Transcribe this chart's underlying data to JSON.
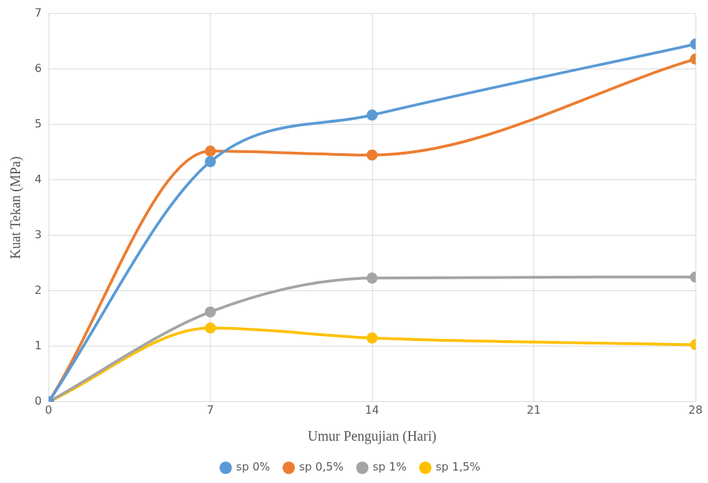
{
  "chart_data": {
    "type": "line",
    "xlabel": "Umur Pengujian (Hari)",
    "ylabel": "Kuat Tekan (MPa)",
    "x": [
      0,
      7,
      14,
      28
    ],
    "series": [
      {
        "name": "sp 0%",
        "color": "#5b9bd5",
        "values": [
          0,
          4.33,
          5.17,
          6.45
        ]
      },
      {
        "name": "sp 0,5%",
        "color": "#ed7d31",
        "values": [
          0,
          4.52,
          4.45,
          6.18
        ]
      },
      {
        "name": "sp 1%",
        "color": "#a5a5a5",
        "values": [
          0,
          1.62,
          2.23,
          2.25
        ]
      },
      {
        "name": "sp 1,5%",
        "color": "#ffc000",
        "values": [
          0,
          1.33,
          1.15,
          1.03
        ]
      }
    ],
    "xlim": [
      0,
      28
    ],
    "xticks": [
      0,
      7,
      14,
      21,
      28
    ],
    "ylim": [
      0,
      7
    ],
    "yticks": [
      0,
      1,
      2,
      3,
      4,
      5,
      6,
      7
    ],
    "grid": true,
    "legend": "bottom",
    "marker": "circle",
    "line_style": "solid"
  }
}
